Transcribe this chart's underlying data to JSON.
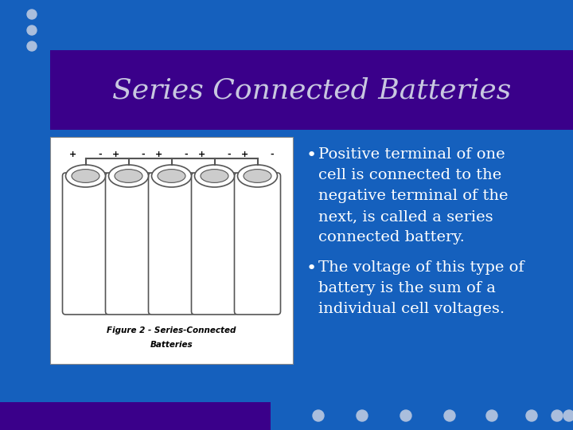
{
  "bg_color": "#1560BD",
  "header_bg_color": "#3A008A",
  "header_text": "Series Connected Batteries",
  "header_text_color": "#C8C8E0",
  "title_fontsize": 26,
  "bullet1_line1": "Positive terminal of one",
  "bullet1_line2": "cell is connected to the",
  "bullet1_line3": "negative terminal of the",
  "bullet1_line4": "next, is called a series",
  "bullet1_line5": "connected battery.",
  "bullet2_line1": "The voltage of this type of",
  "bullet2_line2": "battery is the sum of a",
  "bullet2_line3": "individual cell voltages.",
  "bullet_color": "#FFFFFF",
  "bullet_fontsize": 14,
  "dots_color": "#AABEDD",
  "bottom_bar_color": "#3A008A",
  "fig_caption1": "Figure 2 - Series-Connected",
  "fig_caption2": "Batteries"
}
